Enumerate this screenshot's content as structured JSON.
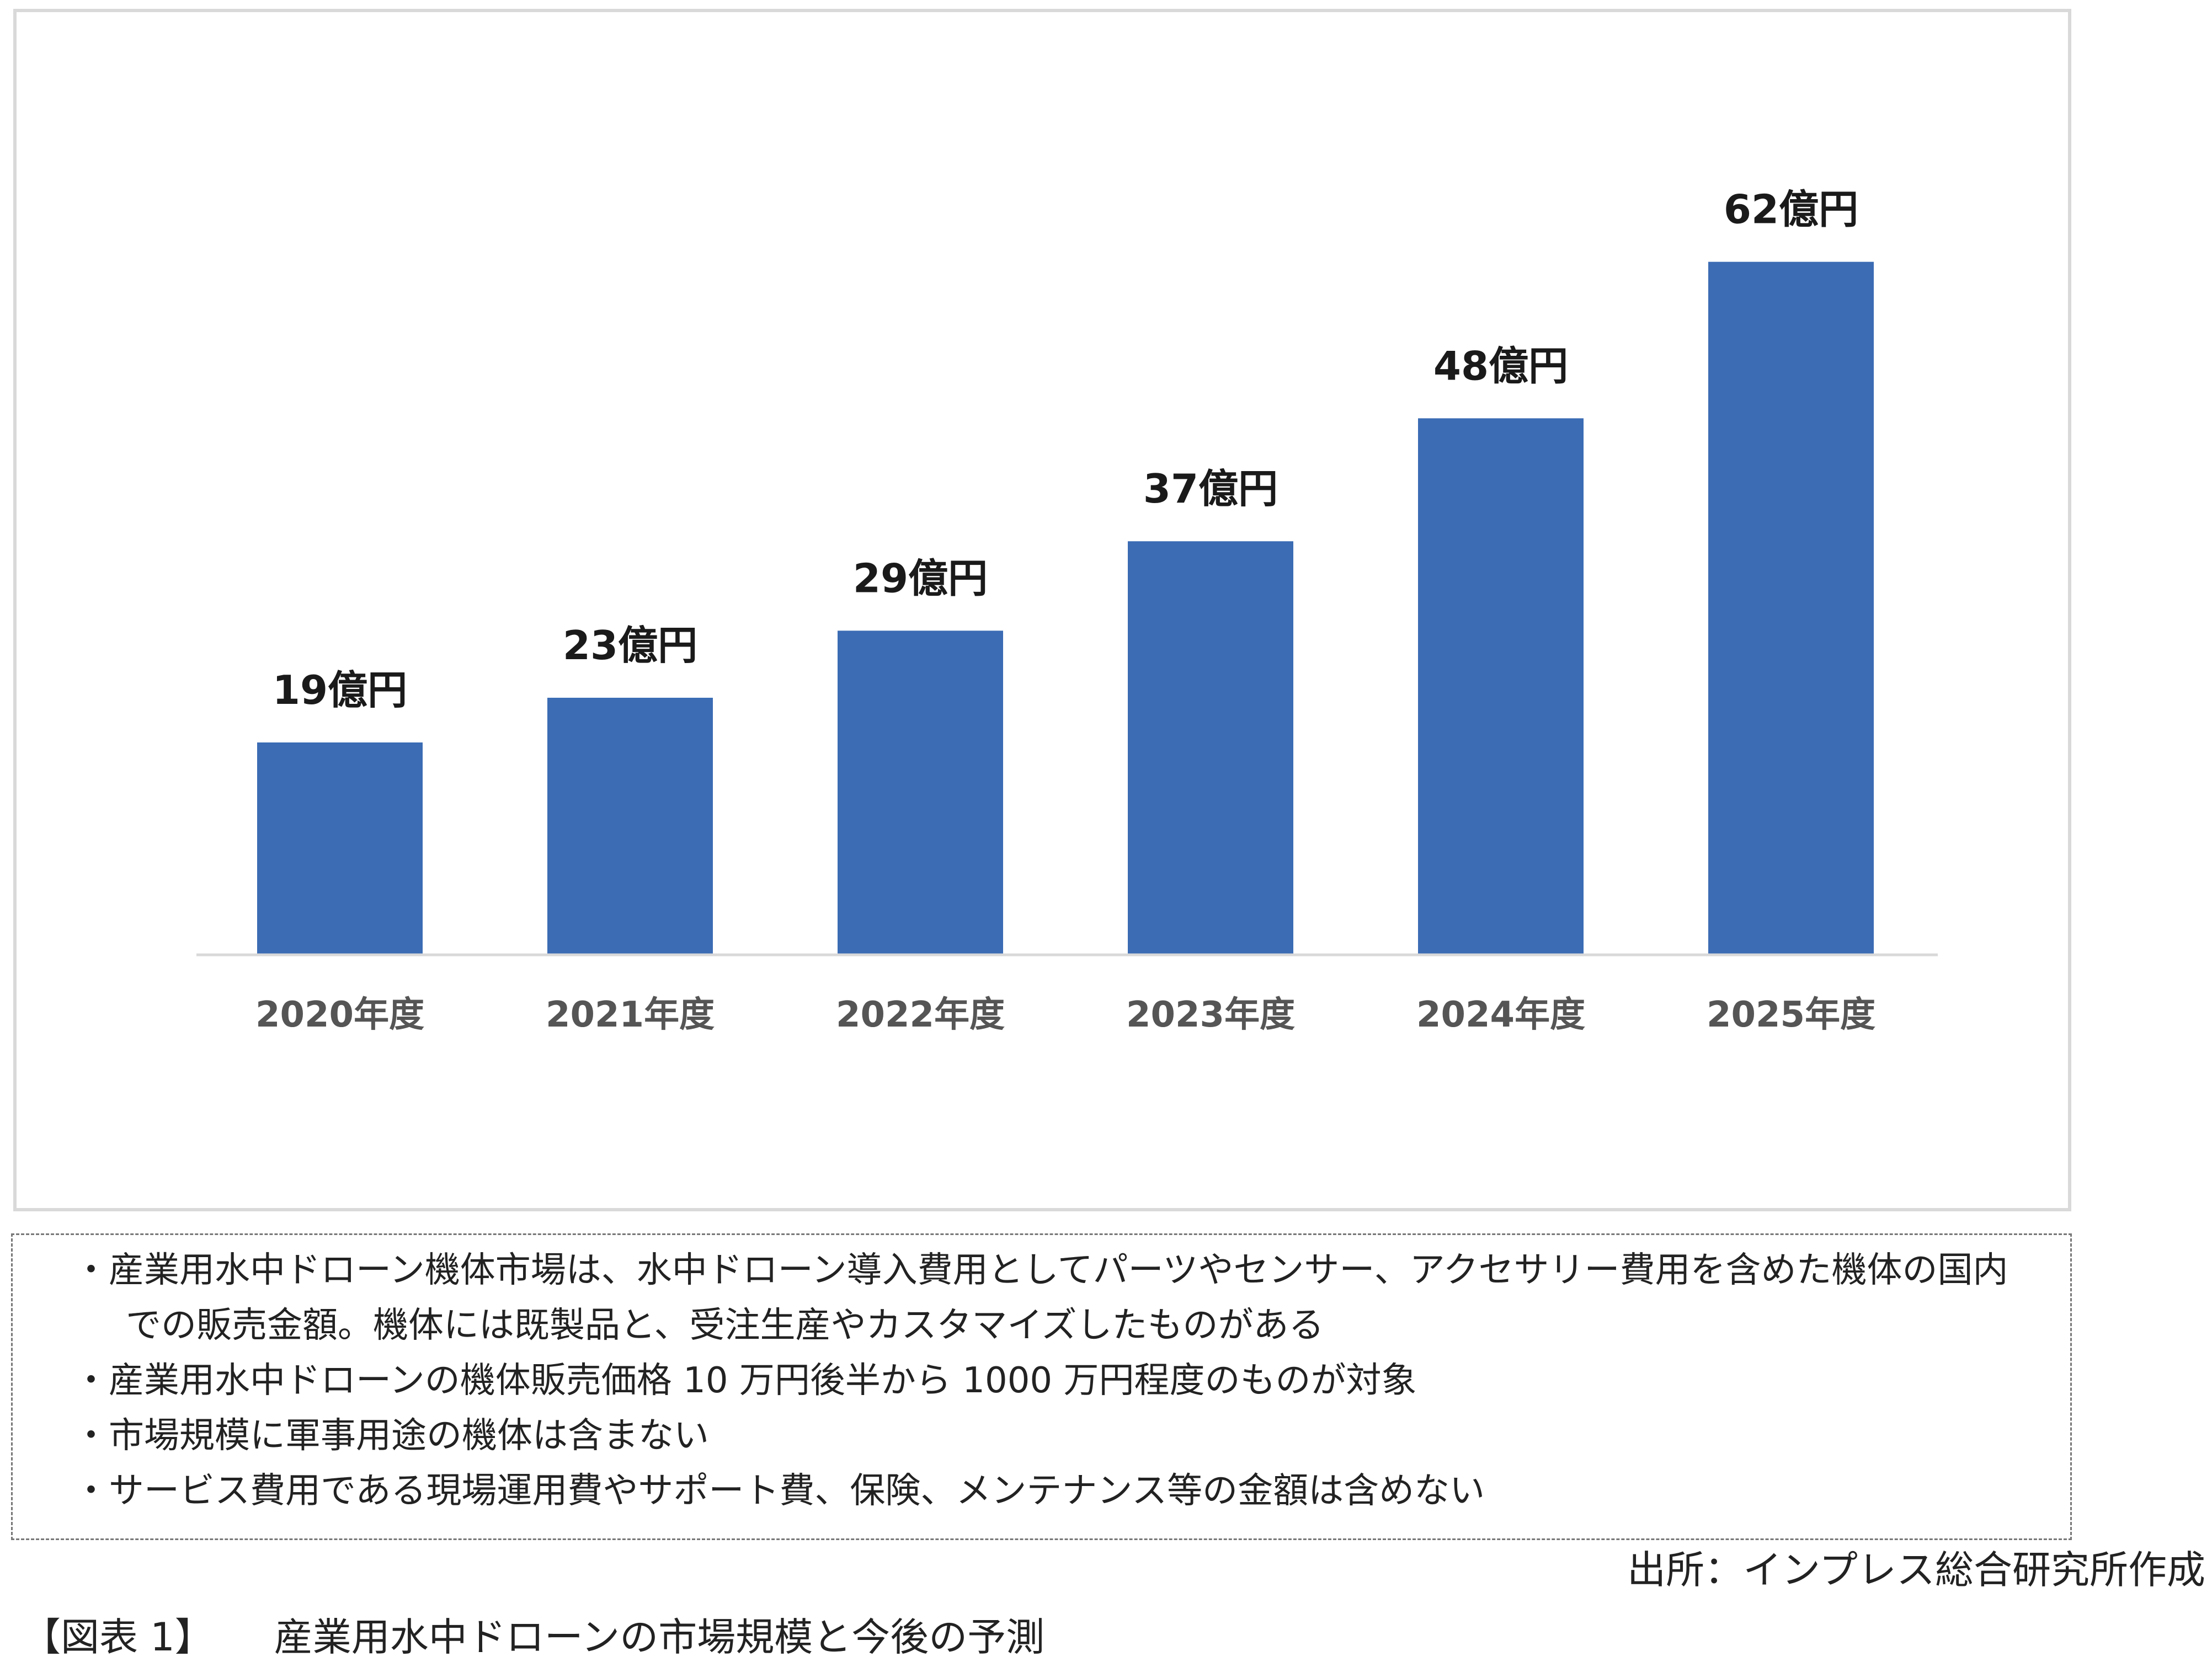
{
  "chart_data": {
    "type": "bar",
    "categories": [
      "2020年度",
      "2021年度",
      "2022年度",
      "2023年度",
      "2024年度",
      "2025年度"
    ],
    "values": [
      19,
      23,
      29,
      37,
      48,
      62
    ],
    "data_labels": [
      "19億円",
      "23億円",
      "29億円",
      "37億円",
      "48億円",
      "62億円"
    ],
    "ylim": [
      0,
      72
    ],
    "grid": false,
    "bar_color": "#3b6cb4",
    "title": "",
    "xlabel": "",
    "ylabel": ""
  },
  "notes": [
    "・産業用水中ドローン機体市場は、水中ドローン導入費用としてパーツやセンサー、アクセサリー費用を含めた機体の国内",
    "での販売金額。機体には既製品と、受注生産やカスタマイズしたものがある",
    "・産業用水中ドローンの機体販売価格 10 万円後半から 1000 万円程度のものが対象",
    "・市場規模に軍事用途の機体は含まない",
    "・サービス費用である現場運用費やサポート費、保険、メンテナンス等の金額は含めない"
  ],
  "source": "出所：インプレス総合研究所作成",
  "caption": {
    "number": "【図表 1】",
    "title": "産業用水中ドローンの市場規模と今後の予測"
  }
}
